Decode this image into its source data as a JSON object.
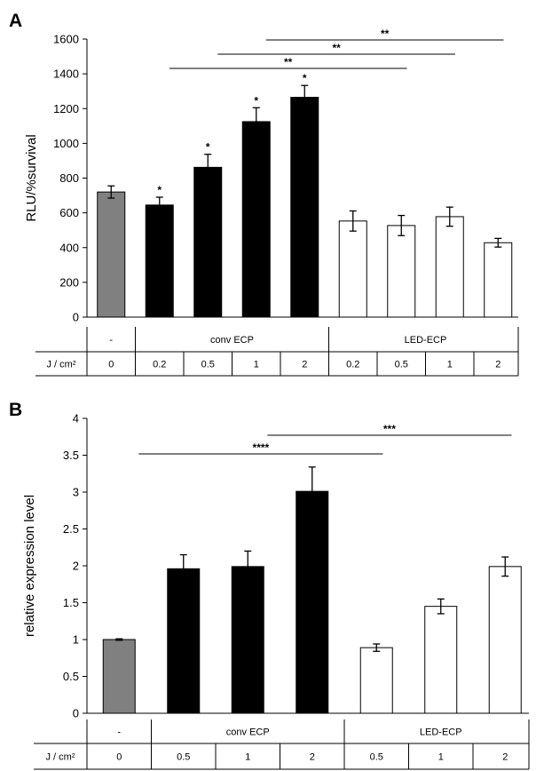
{
  "chart_data": [
    {
      "panel": "A",
      "type": "bar",
      "ylabel": "RLU/%survival",
      "ylim": [
        0,
        1600
      ],
      "yticks": [
        0,
        200,
        400,
        600,
        800,
        1000,
        1200,
        1400,
        1600
      ],
      "categories": [
        "0",
        "0.2",
        "0.5",
        "1",
        "2",
        "0.2",
        "0.5",
        "1",
        "2"
      ],
      "values": [
        720,
        645,
        862,
        1125,
        1265,
        553,
        527,
        578,
        428
      ],
      "errors": [
        35,
        45,
        75,
        80,
        68,
        58,
        58,
        55,
        25
      ],
      "fills": [
        "gray",
        "black",
        "black",
        "black",
        "black",
        "white",
        "white",
        "white",
        "white"
      ],
      "bar_sig": [
        "",
        "*",
        "*",
        "*",
        "*",
        "",
        "",
        "",
        ""
      ],
      "brackets": [
        {
          "from": 2,
          "to": 6,
          "label": "**"
        },
        {
          "from": 3,
          "to": 7,
          "label": "**"
        },
        {
          "from": 4,
          "to": 8,
          "label": "**"
        }
      ],
      "table": {
        "row1": [
          "-",
          "conv ECP",
          "LED-ECP"
        ],
        "row2_header": "J / cm²",
        "row2": [
          "0",
          "0.2",
          "0.5",
          "1",
          "2",
          "0.2",
          "0.5",
          "1",
          "2"
        ]
      }
    },
    {
      "panel": "B",
      "type": "bar",
      "ylabel": "relative expression level",
      "ylim": [
        0,
        4
      ],
      "yticks": [
        "0",
        "0.5",
        "1",
        "1.5",
        "2",
        "2.5",
        "3",
        "3.5",
        "4"
      ],
      "categories": [
        "0",
        "0.5",
        "1",
        "2",
        "0.5",
        "1",
        "2"
      ],
      "values": [
        1.0,
        1.96,
        1.99,
        3.01,
        0.89,
        1.45,
        1.99
      ],
      "errors": [
        0.01,
        0.19,
        0.21,
        0.33,
        0.05,
        0.1,
        0.13
      ],
      "fills": [
        "gray",
        "black",
        "black",
        "black",
        "white",
        "white",
        "white"
      ],
      "brackets": [
        {
          "from": 1,
          "to": 4,
          "label": "****"
        },
        {
          "from": 3,
          "to": 6,
          "label": "***"
        }
      ],
      "table": {
        "row1": [
          "-",
          "conv ECP",
          "LED-ECP"
        ],
        "row2_header": "J / cm²",
        "row2": [
          "0",
          "0.5",
          "1",
          "2",
          "0.5",
          "1",
          "2"
        ]
      }
    }
  ],
  "colors": {
    "gray": "#808080",
    "black": "#000000",
    "white": "#ffffff",
    "axis": "#000000"
  }
}
